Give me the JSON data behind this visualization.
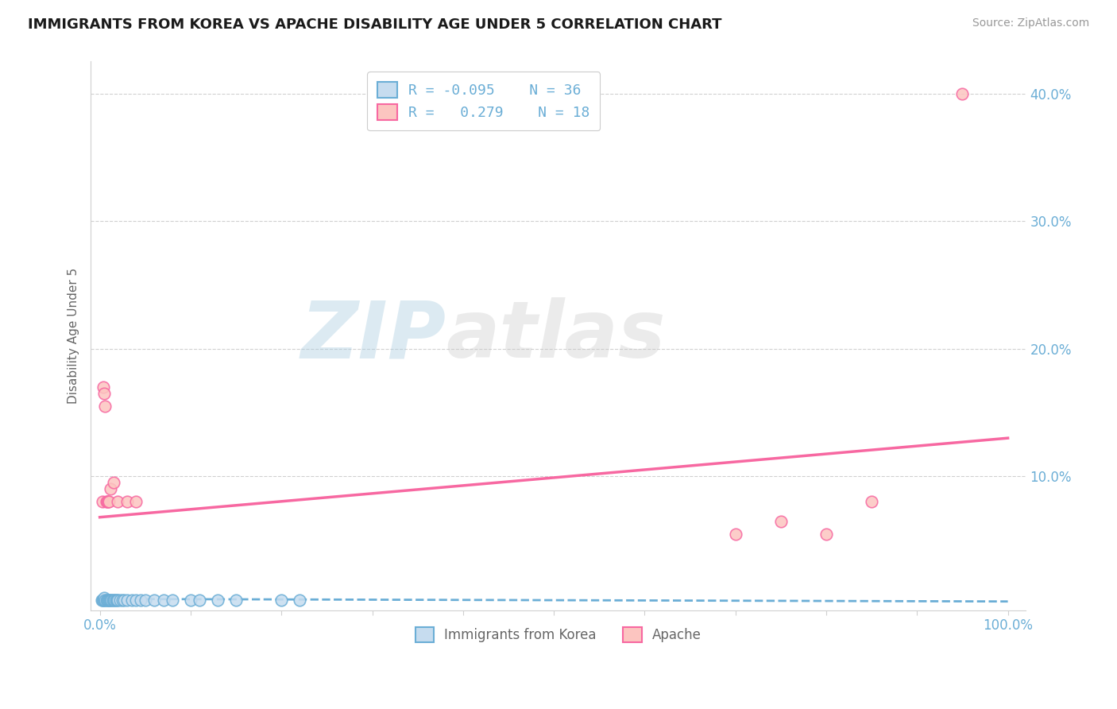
{
  "title": "IMMIGRANTS FROM KOREA VS APACHE DISABILITY AGE UNDER 5 CORRELATION CHART",
  "source": "Source: ZipAtlas.com",
  "ylabel": "Disability Age Under 5",
  "xlim": [
    -0.01,
    1.02
  ],
  "ylim": [
    -0.005,
    0.425
  ],
  "ytick_vals": [
    0.1,
    0.2,
    0.3,
    0.4
  ],
  "ytick_labels": [
    "10.0%",
    "20.0%",
    "30.0%",
    "40.0%"
  ],
  "xtick_vals": [
    0.0,
    0.1,
    0.2,
    0.3,
    0.4,
    0.5,
    0.6,
    0.7,
    0.8,
    0.9,
    1.0
  ],
  "xtick_edge_labels": [
    "0.0%",
    "100.0%"
  ],
  "blue_edge": "#6baed6",
  "blue_face": "#c6dcef",
  "pink_edge": "#f768a1",
  "pink_face": "#fcc5c0",
  "blue_scatter_x": [
    0.002,
    0.003,
    0.004,
    0.005,
    0.005,
    0.006,
    0.007,
    0.008,
    0.009,
    0.01,
    0.011,
    0.012,
    0.013,
    0.014,
    0.015,
    0.016,
    0.018,
    0.019,
    0.02,
    0.022,
    0.025,
    0.027,
    0.03,
    0.035,
    0.04,
    0.045,
    0.05,
    0.06,
    0.07,
    0.08,
    0.1,
    0.11,
    0.13,
    0.15,
    0.2,
    0.22
  ],
  "blue_scatter_y": [
    0.003,
    0.003,
    0.003,
    0.003,
    0.005,
    0.003,
    0.003,
    0.003,
    0.003,
    0.003,
    0.003,
    0.003,
    0.003,
    0.003,
    0.003,
    0.003,
    0.003,
    0.003,
    0.003,
    0.003,
    0.003,
    0.003,
    0.003,
    0.003,
    0.003,
    0.003,
    0.003,
    0.003,
    0.003,
    0.003,
    0.003,
    0.003,
    0.003,
    0.003,
    0.003,
    0.003
  ],
  "pink_scatter_x": [
    0.003,
    0.004,
    0.005,
    0.006,
    0.007,
    0.008,
    0.009,
    0.01,
    0.012,
    0.015,
    0.02,
    0.03,
    0.04,
    0.7,
    0.75,
    0.8,
    0.85,
    0.95
  ],
  "pink_scatter_y": [
    0.08,
    0.17,
    0.165,
    0.155,
    0.08,
    0.08,
    0.08,
    0.08,
    0.09,
    0.095,
    0.08,
    0.08,
    0.08,
    0.055,
    0.065,
    0.055,
    0.08,
    0.4
  ],
  "blue_trend_x": [
    0.0,
    1.0
  ],
  "blue_trend_y": [
    0.004,
    0.002
  ],
  "pink_trend_x": [
    0.0,
    1.0
  ],
  "pink_trend_y": [
    0.068,
    0.13
  ],
  "watermark_zip": "ZIP",
  "watermark_atlas": "atlas",
  "bg": "#ffffff",
  "grid_color": "#d0d0d0",
  "title_color": "#1a1a1a",
  "source_color": "#999999",
  "tick_color": "#6baed6",
  "label_color": "#666666"
}
